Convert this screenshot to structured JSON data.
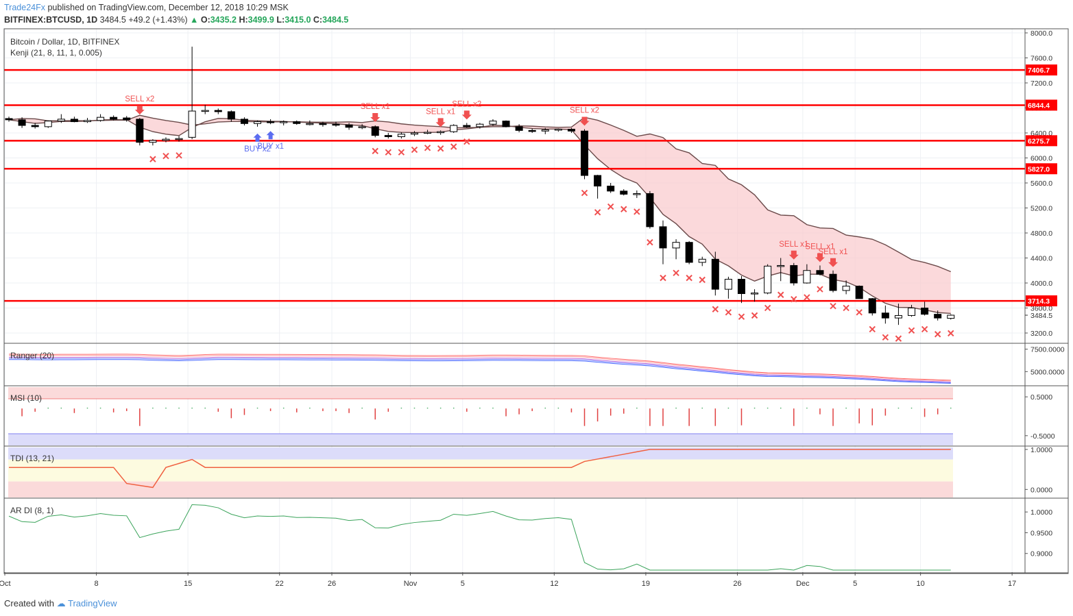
{
  "header": {
    "publisher": "Trade24Fx",
    "published_text": "published on TradingView.com, December 12, 2018 10:29 MSK",
    "symbol": "BITFINEX:BTCUSD, 1D",
    "last": "3484.5",
    "change": "+49.2 (+1.43%)",
    "ohlc_o_label": "O:",
    "ohlc_o": "3435.2",
    "ohlc_h_label": "H:",
    "ohlc_h": "3499.9",
    "ohlc_l_label": "L:",
    "ohlc_l": "3415.0",
    "ohlc_c_label": "C:",
    "ohlc_c": "3484.5"
  },
  "legend": {
    "title": "Bitcoin / Dollar, 1D, BITFINEX",
    "indicator": "Kenji (21, 8, 11, 1, 0.005)"
  },
  "footer": {
    "created_with": "Created with",
    "brand": "TradingView"
  },
  "colors": {
    "up": "#ffffff",
    "down": "#000000",
    "level": "#ff0000",
    "sell": "#f05050",
    "buy": "#5b6cf0",
    "band_fill": "#f9c9cc",
    "band_line": "#6b4a4a"
  },
  "chart_data": [
    {
      "type": "candlestick",
      "title": "Bitcoin / Dollar, 1D, BITFINEX",
      "ylim": [
        3000,
        8000
      ],
      "yticks": [
        3200,
        3600,
        4000,
        4400,
        4800,
        5200,
        5600,
        6000,
        6400,
        6800,
        7200,
        7600,
        8000
      ],
      "ytick_labels": [
        "3200.0",
        "3600.0",
        "4000.0",
        "4400.0",
        "4800.0",
        "5200.0",
        "5600.0",
        "6000.0",
        "6400.0",
        "6800.0",
        "7200.0",
        "7600.0",
        "8000.0"
      ],
      "x_labels": [
        "Oct",
        "8",
        "15",
        "22",
        "26",
        "Nov",
        "5",
        "12",
        "19",
        "26",
        "Dec",
        "5",
        "10",
        "17"
      ],
      "levels": [
        {
          "value": 7406.7,
          "label": "7406.7"
        },
        {
          "value": 6844.4,
          "label": "6844.4"
        },
        {
          "value": 6275.7,
          "label": "6275.7"
        },
        {
          "value": 5827.0,
          "label": "5827.0"
        },
        {
          "value": 3714.3,
          "label": "3714.3"
        }
      ],
      "last_price_label": "3484.5",
      "candles": [
        [
          6630,
          6660,
          6580,
          6610
        ],
        [
          6610,
          6650,
          6480,
          6520
        ],
        [
          6520,
          6560,
          6470,
          6500
        ],
        [
          6500,
          6600,
          6480,
          6590
        ],
        [
          6590,
          6700,
          6560,
          6620
        ],
        [
          6620,
          6660,
          6570,
          6580
        ],
        [
          6580,
          6640,
          6560,
          6600
        ],
        [
          6600,
          6700,
          6580,
          6650
        ],
        [
          6650,
          6680,
          6600,
          6620
        ],
        [
          6640,
          6670,
          6580,
          6610
        ],
        [
          6620,
          6640,
          6200,
          6250
        ],
        [
          6250,
          6300,
          6200,
          6280
        ],
        [
          6280,
          6330,
          6250,
          6300
        ],
        [
          6300,
          6350,
          6260,
          6310
        ],
        [
          6330,
          7780,
          6300,
          6750
        ],
        [
          6750,
          6850,
          6700,
          6760
        ],
        [
          6760,
          6790,
          6700,
          6740
        ],
        [
          6740,
          6760,
          6580,
          6620
        ],
        [
          6620,
          6650,
          6520,
          6550
        ],
        [
          6550,
          6600,
          6500,
          6580
        ],
        [
          6580,
          6620,
          6540,
          6570
        ],
        [
          6570,
          6600,
          6520,
          6580
        ],
        [
          6580,
          6600,
          6530,
          6550
        ],
        [
          6550,
          6600,
          6520,
          6550
        ],
        [
          6550,
          6580,
          6500,
          6540
        ],
        [
          6540,
          6580,
          6500,
          6530
        ],
        [
          6530,
          6560,
          6450,
          6490
        ],
        [
          6490,
          6540,
          6460,
          6500
        ],
        [
          6500,
          6520,
          6330,
          6360
        ],
        [
          6360,
          6400,
          6310,
          6340
        ],
        [
          6340,
          6410,
          6310,
          6380
        ],
        [
          6380,
          6430,
          6350,
          6400
        ],
        [
          6400,
          6450,
          6380,
          6410
        ],
        [
          6410,
          6440,
          6370,
          6420
        ],
        [
          6420,
          6540,
          6400,
          6520
        ],
        [
          6520,
          6560,
          6480,
          6500
        ],
        [
          6500,
          6560,
          6470,
          6540
        ],
        [
          6540,
          6620,
          6510,
          6590
        ],
        [
          6590,
          6600,
          6490,
          6500
        ],
        [
          6500,
          6540,
          6410,
          6440
        ],
        [
          6440,
          6470,
          6400,
          6430
        ],
        [
          6430,
          6480,
          6380,
          6450
        ],
        [
          6450,
          6470,
          6420,
          6460
        ],
        [
          6460,
          6480,
          6400,
          6430
        ],
        [
          6430,
          6460,
          5660,
          5720
        ],
        [
          5720,
          5730,
          5350,
          5550
        ],
        [
          5550,
          5600,
          5440,
          5470
        ],
        [
          5470,
          5500,
          5400,
          5420
        ],
        [
          5420,
          5480,
          5360,
          5430
        ],
        [
          5430,
          5470,
          4870,
          4900
        ],
        [
          4900,
          5000,
          4300,
          4560
        ],
        [
          4560,
          4700,
          4380,
          4650
        ],
        [
          4650,
          4670,
          4300,
          4330
        ],
        [
          4330,
          4420,
          4270,
          4380
        ],
        [
          4380,
          4500,
          3800,
          3900
        ],
        [
          3900,
          4100,
          3750,
          4060
        ],
        [
          4060,
          4110,
          3680,
          3830
        ],
        [
          3830,
          3900,
          3700,
          3840
        ],
        [
          3840,
          4300,
          3820,
          4270
        ],
        [
          4270,
          4400,
          4030,
          4280
        ],
        [
          4280,
          4320,
          3960,
          4000
        ],
        [
          4000,
          4300,
          3990,
          4200
        ],
        [
          4200,
          4280,
          4120,
          4140
        ],
        [
          4140,
          4200,
          3850,
          3880
        ],
        [
          3880,
          4040,
          3820,
          3950
        ],
        [
          3950,
          3960,
          3750,
          3750
        ],
        [
          3750,
          3760,
          3480,
          3520
        ],
        [
          3520,
          3640,
          3350,
          3440
        ],
        [
          3440,
          3670,
          3330,
          3480
        ],
        [
          3480,
          3650,
          3460,
          3600
        ],
        [
          3600,
          3700,
          3480,
          3500
        ],
        [
          3500,
          3560,
          3400,
          3440
        ],
        [
          3435,
          3500,
          3415,
          3485
        ]
      ],
      "signals": [
        {
          "index": 10,
          "type": "sell",
          "label": "SELL x2"
        },
        {
          "index": 19,
          "type": "buy",
          "label": "BUY x2"
        },
        {
          "index": 20,
          "type": "buy",
          "label": "BUY x1"
        },
        {
          "index": 28,
          "type": "sell",
          "label": "SELL x1"
        },
        {
          "index": 33,
          "type": "sell",
          "label": "SELL x1"
        },
        {
          "index": 35,
          "type": "sell",
          "label": "SELL x2"
        },
        {
          "index": 44,
          "type": "sell",
          "label": "SELL x2"
        },
        {
          "index": 60,
          "type": "sell",
          "label": "SELL x1"
        },
        {
          "index": 62,
          "type": "sell",
          "label": "SELL x1"
        },
        {
          "index": 63,
          "type": "sell",
          "label": "SELL x1"
        }
      ]
    },
    {
      "type": "line",
      "title": "Ranger (20)",
      "ylim": [
        3500,
        8000
      ],
      "ytick_labels": [
        "7500.0000",
        "5000.0000"
      ],
      "yticks": [
        7500,
        5000
      ]
    },
    {
      "type": "bar",
      "title": "MSI (10)",
      "ylim": [
        -0.75,
        0.75
      ],
      "yticks": [
        0.5,
        -0.5
      ],
      "ytick_labels": [
        "0.5000",
        "-0.5000"
      ]
    },
    {
      "type": "line",
      "title": "TDI (13, 21)",
      "ylim": [
        -0.2,
        1.05
      ],
      "yticks": [
        1,
        0
      ],
      "ytick_labels": [
        "1.0000",
        "0.0000"
      ]
    },
    {
      "type": "line",
      "title": "AR DI (8, 1)",
      "ylim": [
        0.855,
        1.03
      ],
      "yticks": [
        1.0,
        0.95,
        0.9
      ],
      "ytick_labels": [
        "1.0000",
        "0.9500",
        "0.9000"
      ]
    }
  ]
}
